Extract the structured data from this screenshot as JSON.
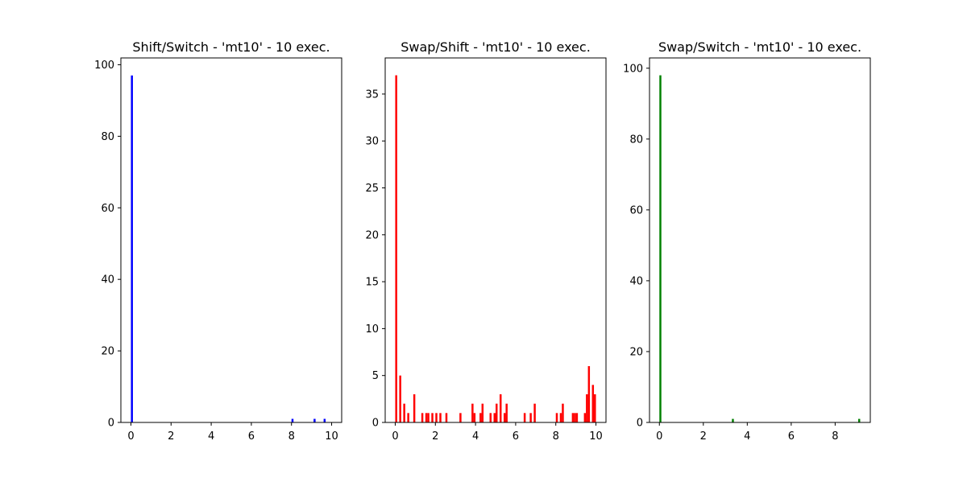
{
  "chart_data": [
    {
      "type": "bar",
      "title": "Shift/Switch - 'mt10' - 10 exec.",
      "xlabel": "",
      "ylabel": "",
      "color": "#0000ff",
      "xlim": [
        -0.5,
        10.5
      ],
      "ylim": [
        0,
        101.9
      ],
      "x_ticks": [
        0,
        2,
        4,
        6,
        8,
        10
      ],
      "y_ticks": [
        0,
        20,
        40,
        60,
        80,
        100
      ],
      "x_tick_labels": [
        "0",
        "2",
        "4",
        "6",
        "8",
        "10"
      ],
      "y_tick_labels": [
        "0",
        "20",
        "40",
        "60",
        "80",
        "100"
      ],
      "bin_width": 0.1,
      "bars": [
        {
          "x": 0.0,
          "value": 97
        },
        {
          "x": 8.0,
          "value": 1
        },
        {
          "x": 9.1,
          "value": 1
        },
        {
          "x": 9.6,
          "value": 1
        }
      ],
      "grid": false
    },
    {
      "type": "bar",
      "title": "Swap/Shift - 'mt10' - 10 exec.",
      "xlabel": "",
      "ylabel": "",
      "color": "#ff0000",
      "xlim": [
        -0.5,
        10.5
      ],
      "ylim": [
        0,
        38.85
      ],
      "x_ticks": [
        0,
        2,
        4,
        6,
        8,
        10
      ],
      "y_ticks": [
        0,
        5,
        10,
        15,
        20,
        25,
        30,
        35
      ],
      "x_tick_labels": [
        "0",
        "2",
        "4",
        "6",
        "8",
        "10"
      ],
      "y_tick_labels": [
        "0",
        "5",
        "10",
        "15",
        "20",
        "25",
        "30",
        "35"
      ],
      "bin_width": 0.1,
      "bars": [
        {
          "x": 0.0,
          "value": 37
        },
        {
          "x": 0.2,
          "value": 5
        },
        {
          "x": 0.4,
          "value": 2
        },
        {
          "x": 0.6,
          "value": 1
        },
        {
          "x": 0.9,
          "value": 3
        },
        {
          "x": 1.3,
          "value": 1
        },
        {
          "x": 1.5,
          "value": 1
        },
        {
          "x": 1.6,
          "value": 1
        },
        {
          "x": 1.8,
          "value": 1
        },
        {
          "x": 2.0,
          "value": 1
        },
        {
          "x": 2.2,
          "value": 1
        },
        {
          "x": 2.5,
          "value": 1
        },
        {
          "x": 3.2,
          "value": 1
        },
        {
          "x": 3.8,
          "value": 2
        },
        {
          "x": 3.9,
          "value": 1
        },
        {
          "x": 4.2,
          "value": 1
        },
        {
          "x": 4.3,
          "value": 2
        },
        {
          "x": 4.7,
          "value": 1
        },
        {
          "x": 4.9,
          "value": 1
        },
        {
          "x": 5.0,
          "value": 2
        },
        {
          "x": 5.2,
          "value": 3
        },
        {
          "x": 5.4,
          "value": 1
        },
        {
          "x": 5.5,
          "value": 2
        },
        {
          "x": 6.4,
          "value": 1
        },
        {
          "x": 6.7,
          "value": 1
        },
        {
          "x": 6.9,
          "value": 2
        },
        {
          "x": 8.0,
          "value": 1
        },
        {
          "x": 8.2,
          "value": 1
        },
        {
          "x": 8.3,
          "value": 2
        },
        {
          "x": 8.8,
          "value": 1
        },
        {
          "x": 8.9,
          "value": 1
        },
        {
          "x": 9.0,
          "value": 1
        },
        {
          "x": 9.4,
          "value": 1
        },
        {
          "x": 9.5,
          "value": 3
        },
        {
          "x": 9.6,
          "value": 6
        },
        {
          "x": 9.8,
          "value": 4
        },
        {
          "x": 9.9,
          "value": 3
        }
      ],
      "grid": false
    },
    {
      "type": "bar",
      "title": "Swap/Switch - 'mt10' - 10 exec.",
      "xlabel": "",
      "ylabel": "",
      "color": "#008000",
      "xlim": [
        -0.45,
        9.6
      ],
      "ylim": [
        0,
        102.9
      ],
      "x_ticks": [
        0,
        2,
        4,
        6,
        8
      ],
      "y_ticks": [
        0,
        20,
        40,
        60,
        80,
        100
      ],
      "x_tick_labels": [
        "0",
        "2",
        "4",
        "6",
        "8"
      ],
      "y_tick_labels": [
        "0",
        "20",
        "40",
        "60",
        "80",
        "100"
      ],
      "bin_width": 0.09,
      "bars": [
        {
          "x": 0.0,
          "value": 98
        },
        {
          "x": 3.3,
          "value": 1
        },
        {
          "x": 9.05,
          "value": 1
        }
      ],
      "grid": false
    }
  ]
}
